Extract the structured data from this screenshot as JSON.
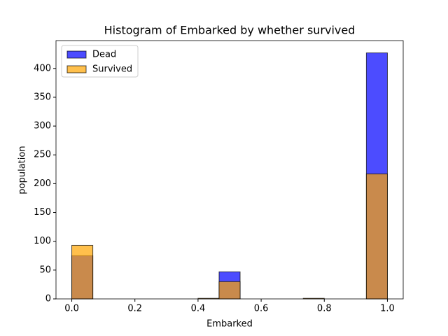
{
  "chart_data": {
    "type": "histogram",
    "title": "Histogram of Embarked by whether survived",
    "xlabel": "Embarked",
    "ylabel": "population",
    "bins": [
      0,
      0.06667,
      0.13333,
      0.2,
      0.26667,
      0.33333,
      0.4,
      0.46667,
      0.53333,
      0.6,
      0.66667,
      0.73333,
      0.8,
      0.86667,
      0.93333,
      1
    ],
    "series": [
      {
        "name": "Dead",
        "color": "#0000ff",
        "values": [
          75,
          0,
          0,
          0,
          0,
          0,
          0,
          47,
          0,
          0,
          0,
          0,
          0,
          0,
          427
        ]
      },
      {
        "name": "Survived",
        "color": "#ffa500",
        "values": [
          93,
          0,
          0,
          0,
          0,
          0,
          1,
          30,
          0,
          0,
          0,
          1,
          0,
          0,
          217
        ]
      }
    ],
    "xlim": [
      -0.05,
      1.05
    ],
    "xticks": [
      {
        "value": 0,
        "label": "0.0"
      },
      {
        "value": 0.2,
        "label": "0.2"
      },
      {
        "value": 0.4,
        "label": "0.4"
      },
      {
        "value": 0.6,
        "label": "0.6"
      },
      {
        "value": 0.8,
        "label": "0.8"
      },
      {
        "value": 1,
        "label": "1.0"
      }
    ],
    "ylim": [
      0,
      448.35
    ],
    "yticks": [
      0,
      50,
      100,
      150,
      200,
      250,
      300,
      350,
      400
    ],
    "legend": "upper left"
  }
}
